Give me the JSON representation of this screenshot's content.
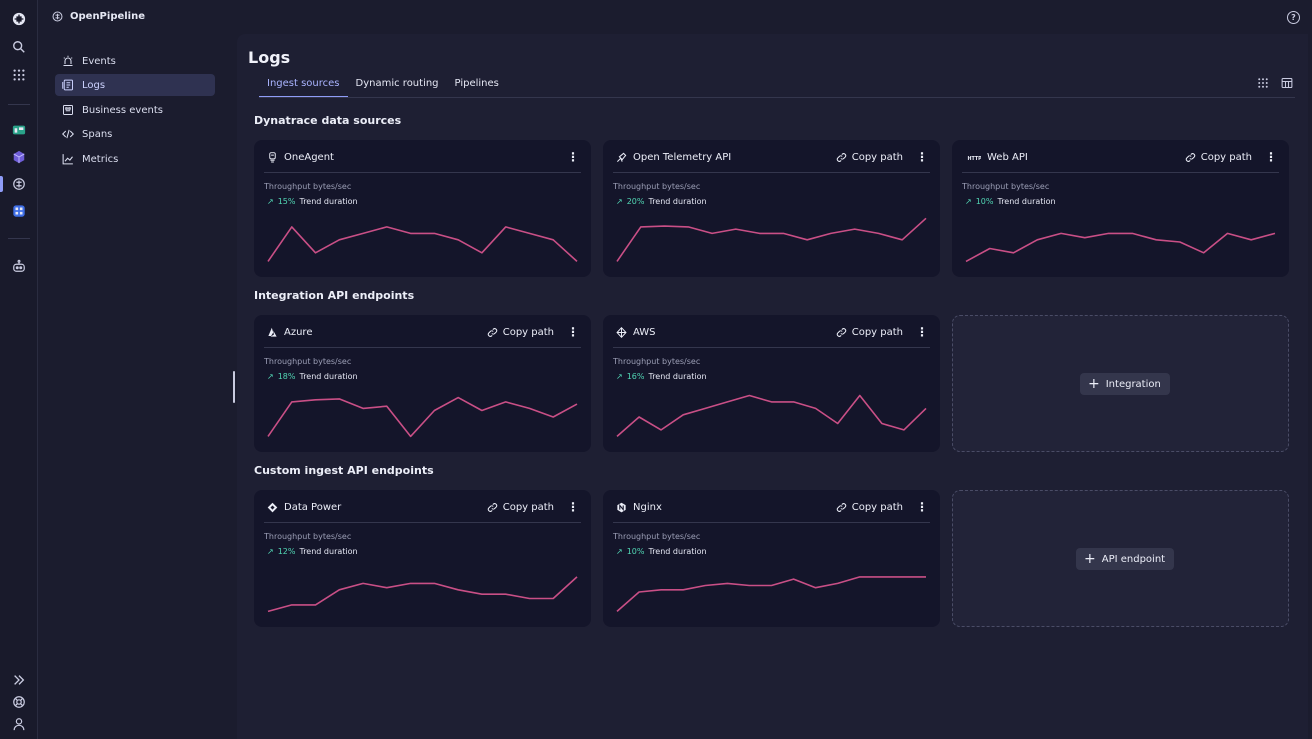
{
  "topbar": {
    "app_title": "OpenPipeline"
  },
  "nav": {
    "items": [
      {
        "label": "Events",
        "icon": "siren-icon",
        "active": false
      },
      {
        "label": "Logs",
        "icon": "logs-icon",
        "active": true
      },
      {
        "label": "Business events",
        "icon": "business-events-icon",
        "active": false
      },
      {
        "label": "Spans",
        "icon": "code-icon",
        "active": false
      },
      {
        "label": "Metrics",
        "icon": "line-chart-icon",
        "active": false
      }
    ]
  },
  "main": {
    "title": "Logs",
    "tabs": [
      {
        "label": "Ingest sources",
        "active": true
      },
      {
        "label": "Dynamic routing",
        "active": false
      },
      {
        "label": "Pipelines",
        "active": false
      }
    ]
  },
  "sections": [
    {
      "title": "Dynatrace data sources",
      "cards": [
        {
          "name": "OneAgent",
          "icon": "oneagent-icon",
          "copy": "",
          "metric": "Throughput bytes/sec",
          "trend_pct": "15%",
          "trend_label": "Trend duration",
          "series": [
            2,
            10,
            4,
            7,
            8.5,
            10,
            8.5,
            8.5,
            7,
            4,
            10,
            8.5,
            7,
            2
          ]
        },
        {
          "name": "Open Telemetry API",
          "icon": "telescope-icon",
          "copy": "Copy path",
          "metric": "Throughput bytes/sec",
          "trend_pct": "20%",
          "trend_label": "Trend duration",
          "series": [
            2,
            10,
            10.2,
            10,
            8.5,
            9.5,
            8.5,
            8.5,
            7,
            8.5,
            9.5,
            8.5,
            7,
            12
          ]
        },
        {
          "name": "Web API",
          "icon": "http-icon",
          "copy": "Copy path",
          "metric": "Throughput bytes/sec",
          "trend_pct": "10%",
          "trend_label": "Trend duration",
          "series": [
            2,
            5,
            4,
            7,
            8.5,
            7.5,
            8.5,
            8.5,
            7,
            6.5,
            4,
            8.5,
            7,
            8.5
          ]
        }
      ]
    },
    {
      "title": "Integration API endpoints",
      "cards": [
        {
          "name": "Azure",
          "icon": "azure-icon",
          "copy": "Copy path",
          "metric": "Throughput bytes/sec",
          "trend_pct": "18%",
          "trend_label": "Trend duration",
          "series": [
            2,
            10,
            10.5,
            10.7,
            8.5,
            9,
            2,
            8,
            11,
            8,
            10,
            8.5,
            6.5,
            9.5
          ]
        },
        {
          "name": "AWS",
          "icon": "aws-icon",
          "copy": "Copy path",
          "metric": "Throughput bytes/sec",
          "trend_pct": "16%",
          "trend_label": "Trend duration",
          "series": [
            2,
            6.5,
            3.5,
            7,
            8.5,
            10,
            11.5,
            10,
            10,
            8.5,
            5,
            11.5,
            5,
            3.5,
            8.5
          ]
        }
      ],
      "add_label": "Integration"
    },
    {
      "title": "Custom ingest API endpoints",
      "cards": [
        {
          "name": "Data Power",
          "icon": "diamond-icon",
          "copy": "Copy path",
          "metric": "Throughput bytes/sec",
          "trend_pct": "12%",
          "trend_label": "Trend duration",
          "series": [
            2,
            3.5,
            3.5,
            7,
            8.5,
            7.5,
            8.5,
            8.5,
            7,
            6,
            6,
            5,
            5,
            10
          ]
        },
        {
          "name": "Nginx",
          "icon": "nginx-icon",
          "copy": "Copy path",
          "metric": "Throughput bytes/sec",
          "trend_pct": "10%",
          "trend_label": "Trend duration",
          "series": [
            2,
            6.5,
            7,
            7,
            8,
            8.5,
            8,
            8,
            9.5,
            7.5,
            8.5,
            10,
            10,
            10,
            10
          ]
        }
      ],
      "add_label": "API endpoint"
    }
  ],
  "colors": {
    "accent": "#8f9cf8",
    "sparkline": "#c94f86",
    "trend_up": "#52d6b4"
  }
}
